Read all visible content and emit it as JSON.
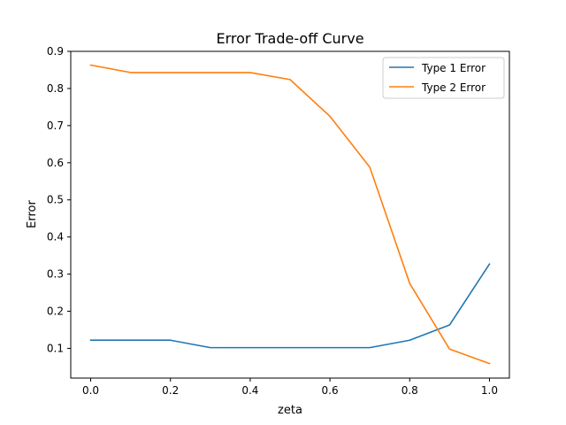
{
  "chart_data": {
    "type": "line",
    "title": "Error Trade-off Curve",
    "xlabel": "zeta",
    "ylabel": "Error",
    "xlim": [
      -0.05,
      1.05
    ],
    "ylim": [
      0.02,
      0.9
    ],
    "x_ticks": [
      0.0,
      0.2,
      0.4,
      0.6,
      0.8,
      1.0
    ],
    "x_tick_labels": [
      "0.0",
      "0.2",
      "0.4",
      "0.6",
      "0.8",
      "1.0"
    ],
    "y_ticks": [
      0.1,
      0.2,
      0.3,
      0.4,
      0.5,
      0.6,
      0.7,
      0.8,
      0.9
    ],
    "y_tick_labels": [
      "0.1",
      "0.2",
      "0.3",
      "0.4",
      "0.5",
      "0.6",
      "0.7",
      "0.8",
      "0.9"
    ],
    "grid": false,
    "legend_position": "top-right",
    "x": [
      0.0,
      0.1,
      0.2,
      0.3,
      0.4,
      0.5,
      0.6,
      0.7,
      0.8,
      0.9,
      1.0
    ],
    "series": [
      {
        "name": "Type 1 Error",
        "color": "#1f77b4",
        "values": [
          0.122,
          0.122,
          0.122,
          0.102,
          0.102,
          0.102,
          0.102,
          0.102,
          0.122,
          0.163,
          0.327
        ]
      },
      {
        "name": "Type 2 Error",
        "color": "#ff7f0e",
        "values": [
          0.863,
          0.843,
          0.843,
          0.843,
          0.843,
          0.824,
          0.725,
          0.588,
          0.275,
          0.098,
          0.059
        ]
      }
    ]
  }
}
